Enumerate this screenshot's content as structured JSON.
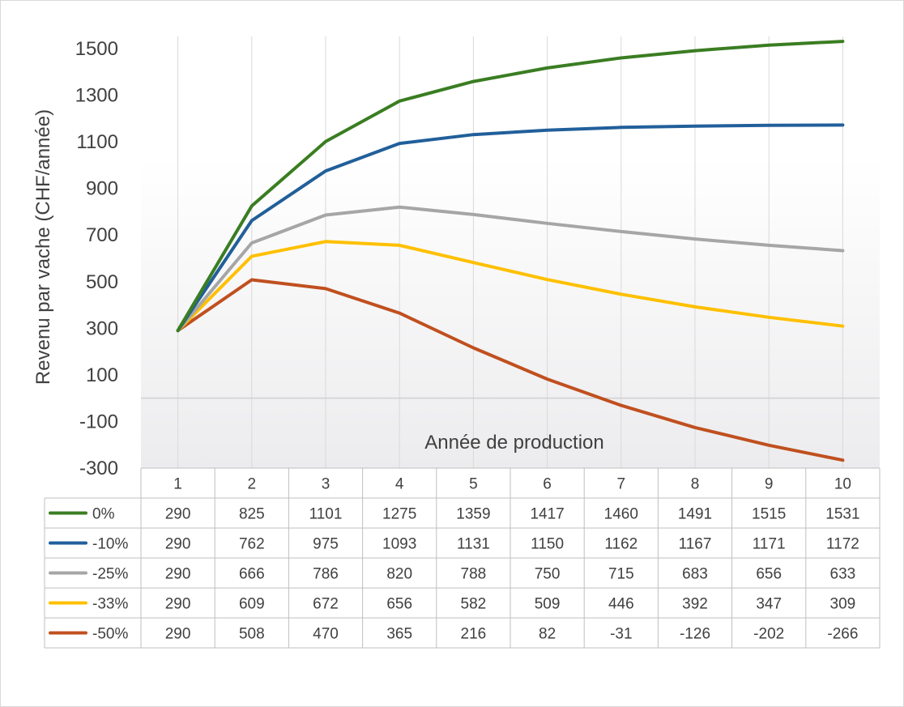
{
  "chart_data": {
    "type": "line",
    "title": "",
    "xlabel": "Année de production",
    "ylabel": "Revenu par vache  (CHF/année)",
    "ylim": [
      -300,
      1500
    ],
    "yticks": [
      1500,
      1300,
      1100,
      900,
      700,
      500,
      300,
      100,
      -100,
      -300
    ],
    "categories": [
      "1",
      "2",
      "3",
      "4",
      "5",
      "6",
      "7",
      "8",
      "9",
      "10"
    ],
    "grid": "vertical",
    "legend": "data-table",
    "series": [
      {
        "name": "0%",
        "color": "#3a7d22",
        "values": [
          290,
          825,
          1101,
          1275,
          1359,
          1417,
          1460,
          1491,
          1515,
          1531
        ]
      },
      {
        "name": "-10%",
        "color": "#215f9a",
        "values": [
          290,
          762,
          975,
          1093,
          1131,
          1150,
          1162,
          1167,
          1171,
          1172
        ]
      },
      {
        "name": "-25%",
        "color": "#a6a6a6",
        "values": [
          290,
          666,
          786,
          820,
          788,
          750,
          715,
          683,
          656,
          633
        ]
      },
      {
        "name": "-33%",
        "color": "#ffc000",
        "values": [
          290,
          609,
          672,
          656,
          582,
          509,
          446,
          392,
          347,
          309
        ]
      },
      {
        "name": "-50%",
        "color": "#c0501f",
        "values": [
          290,
          508,
          470,
          365,
          216,
          82,
          -31,
          -126,
          -202,
          -266
        ]
      }
    ]
  }
}
